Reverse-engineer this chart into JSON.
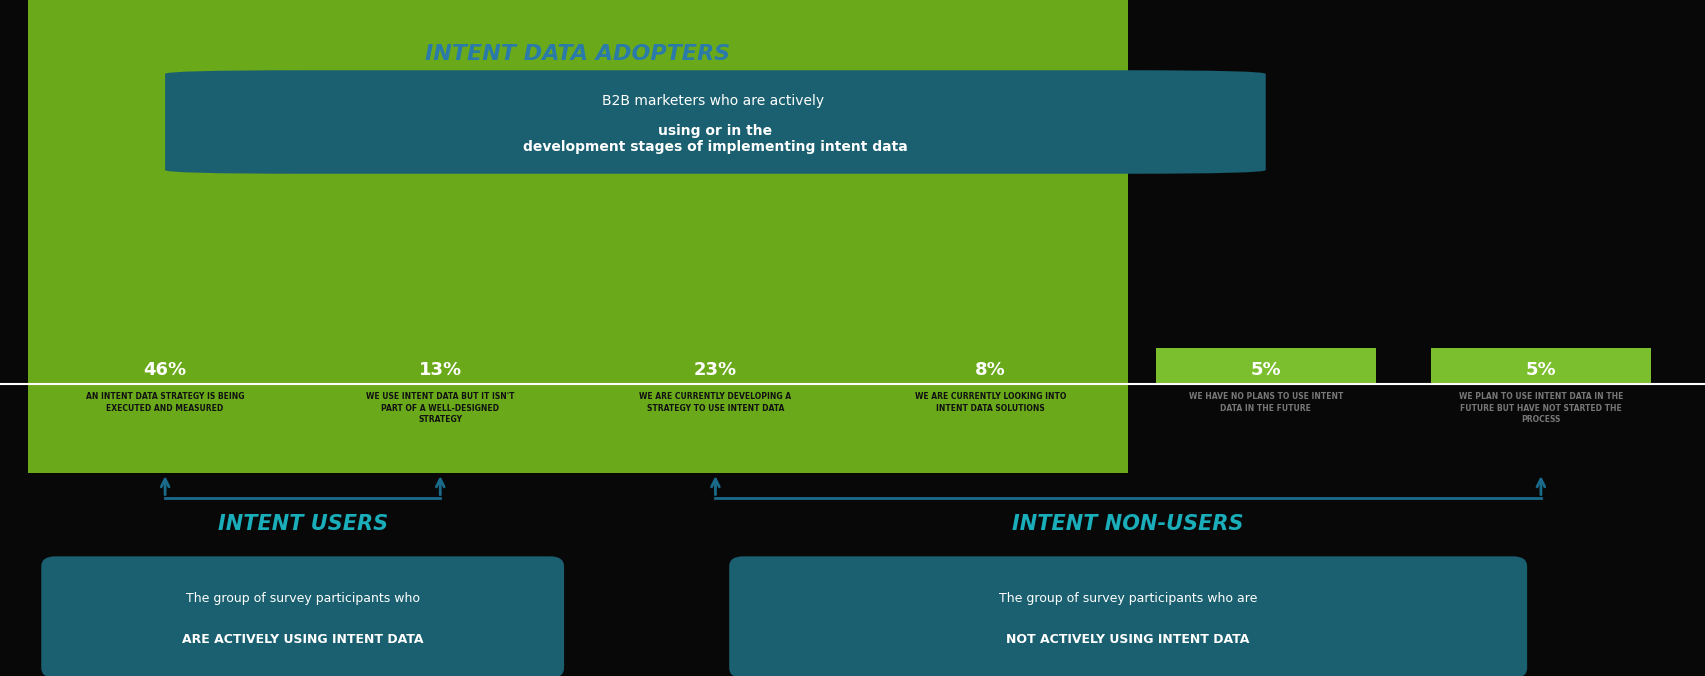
{
  "background_color": "#080808",
  "bar_values": [
    46,
    13,
    23,
    8,
    5,
    5
  ],
  "bar_labels": [
    "46%",
    "13%",
    "23%",
    "8%",
    "5%",
    "5%"
  ],
  "bar_descriptions": [
    "AN INTENT DATA STRATEGY IS BEING\nEXECUTED AND MEASURED",
    "WE USE INTENT DATA BUT IT ISN'T\nPART OF A WELL-DESIGNED\nSTRATEGY",
    "WE ARE CURRENTLY DEVELOPING A\nSTRATEGY TO USE INTENT DATA",
    "WE ARE CURRENTLY LOOKING INTO\nINTENT DATA SOLUTIONS",
    "WE HAVE NO PLANS TO USE INTENT\nDATA IN THE FUTURE",
    "WE PLAN TO USE INTENT DATA IN THE\nFUTURE BUT HAVE NOT STARTED THE\nPROCESS"
  ],
  "adopter_bg_color": "#6aaa1a",
  "non_adopter_bar_color": "#7bbf2e",
  "teal_dark_color": "#1a6070",
  "teal_title_color": "#2a7aaa",
  "teal_label_color": "#1aadba",
  "adopters_title": "INTENT DATA ADOPTERS",
  "adopters_subtitle_pre": "B2B marketers who are actively ",
  "adopters_subtitle_bold": "using or in the\ndevelopment stages of implementing intent data",
  "intent_users_title": "INTENT USERS",
  "intent_nonusers_title": "INTENT NON-USERS",
  "arrow_color": "#1a6b8a",
  "white_color": "#ffffff",
  "desc_text_dark": "#111111",
  "desc_text_light": "#777777"
}
